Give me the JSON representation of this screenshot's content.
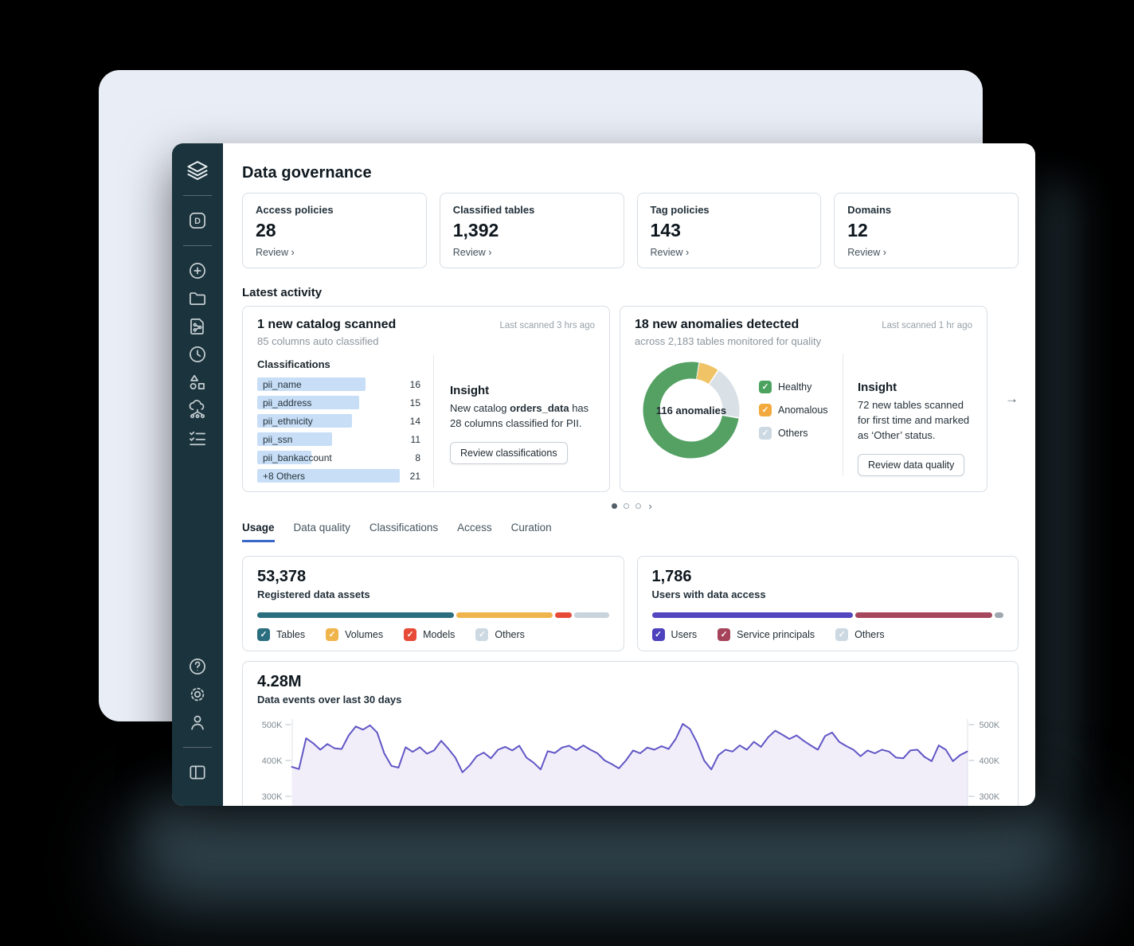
{
  "header": {
    "title": "Data governance"
  },
  "sidebar": {
    "logo": [
      "databricks-logo"
    ],
    "badge": [
      "workspace-d"
    ],
    "nav": [
      "new",
      "folder",
      "notebook",
      "recents",
      "models",
      "catalog",
      "tasks"
    ],
    "utility": [
      "help",
      "settings",
      "profile"
    ],
    "footer": [
      "panel-toggle"
    ]
  },
  "stats": [
    {
      "label": "Access policies",
      "value": "28",
      "link": "Review ›"
    },
    {
      "label": "Classified tables",
      "value": "1,392",
      "link": "Review ›"
    },
    {
      "label": "Tag policies",
      "value": "143",
      "link": "Review ›"
    },
    {
      "label": "Domains",
      "value": "12",
      "link": "Review ›"
    }
  ],
  "activity": {
    "heading": "Latest activity",
    "catalog_card": {
      "title": "1 new catalog scanned",
      "timestamp": "Last scanned 3 hrs ago",
      "subtitle": "85 columns auto classified",
      "list_heading": "Classifications",
      "insight_heading": "Insight",
      "insight_prefix": "New catalog ",
      "insight_bold": "orders_data",
      "insight_suffix": " has 28 columns classified for PII.",
      "button": "Review classifications"
    },
    "anomaly_card": {
      "title": "18 new anomalies detected",
      "timestamp": "Last scanned 1 hr ago",
      "subtitle": "across 2,183 tables monitored for quality",
      "center_label": "116 anomalies",
      "insight_heading": "Insight",
      "insight_text": "72 new tables scanned for first time and marked as ‘Other’ status.",
      "button": "Review data quality",
      "legend": [
        {
          "label": "Healthy",
          "color": "#4ba35f",
          "checked": true
        },
        {
          "label": "Anomalous",
          "color": "#f2a93e",
          "checked": true
        },
        {
          "label": "Others",
          "color": "#ccd8e2",
          "checked": true
        }
      ]
    },
    "carousel": {
      "dots": 3,
      "active_dot": 0,
      "next_arrow": "→",
      "chevron": "›"
    }
  },
  "tabs": [
    {
      "label": "Usage",
      "active": true
    },
    {
      "label": "Data quality",
      "active": false
    },
    {
      "label": "Classifications",
      "active": false
    },
    {
      "label": "Access",
      "active": false
    },
    {
      "label": "Curation",
      "active": false
    }
  ],
  "chart_data": [
    {
      "id": "anomalies_donut",
      "type": "pie",
      "donut": true,
      "center_label": "116 anomalies",
      "categories": [
        "Anomalous",
        "Others",
        "Healthy"
      ],
      "values_pct": [
        7,
        18,
        75
      ],
      "colors": [
        "#efc366",
        "#d9e0e6",
        "#54a163"
      ],
      "start_angle_deg": 10,
      "legend_position": "right"
    },
    {
      "id": "registered_assets_bar",
      "type": "bar",
      "stacked": true,
      "title": "53,378",
      "subtitle": "Registered data assets",
      "categories": [
        "Tables",
        "Volumes",
        "Models",
        "Others"
      ],
      "values_pct": [
        57,
        28,
        5,
        10
      ],
      "colors": [
        "#2a6e7f",
        "#f0b44c",
        "#e74b37",
        "#c9d3dc"
      ],
      "legend_checked": [
        true,
        true,
        true,
        true
      ]
    },
    {
      "id": "data_access_bar",
      "type": "bar",
      "stacked": true,
      "title": "1,786",
      "subtitle": "Users with data access",
      "categories": [
        "Users",
        "Service principals",
        "Others"
      ],
      "values_pct": [
        58,
        39.5,
        2.5
      ],
      "colors": [
        "#5347c0",
        "#a6475c",
        "#9fa8b1"
      ],
      "legend_colors": [
        "#4d41bc",
        "#a4435a",
        "#ccd8e2"
      ],
      "legend_checked": [
        true,
        true,
        true
      ]
    },
    {
      "id": "data_events_line",
      "type": "area",
      "title": "4.28M",
      "subtitle": "Data events over last 30 days",
      "x_days": 30,
      "y_ticks": [
        "500K",
        "400K",
        "300K"
      ],
      "y_tick_values_k": [
        500,
        400,
        300
      ],
      "ylim_k": [
        260,
        530
      ],
      "line_color": "#6156c5",
      "fill_color": "#f1eefa",
      "values_k": [
        382,
        376,
        462,
        448,
        430,
        446,
        434,
        432,
        470,
        495,
        486,
        498,
        478,
        420,
        385,
        380,
        437,
        424,
        437,
        419,
        428,
        455,
        433,
        408,
        367,
        386,
        412,
        422,
        406,
        430,
        438,
        428,
        441,
        408,
        394,
        375,
        426,
        421,
        436,
        441,
        429,
        442,
        430,
        420,
        400,
        390,
        378,
        400,
        428,
        420,
        436,
        430,
        440,
        432,
        460,
        502,
        488,
        450,
        400,
        375,
        415,
        430,
        425,
        442,
        430,
        452,
        438,
        465,
        483,
        472,
        460,
        470,
        455,
        442,
        430,
        468,
        478,
        452,
        440,
        430,
        412,
        428,
        420,
        430,
        425,
        408,
        406,
        428,
        430,
        410,
        398,
        442,
        430,
        398,
        415,
        425
      ]
    },
    {
      "id": "classifications_bars",
      "type": "bar",
      "categories": [
        "pii_name",
        "pii_address",
        "pii_ethnicity",
        "pii_ssn",
        "pii_bankaccount",
        "+8 Others"
      ],
      "values": [
        16,
        15,
        14,
        11,
        8,
        21
      ],
      "bar_color": "#c7def6"
    }
  ]
}
